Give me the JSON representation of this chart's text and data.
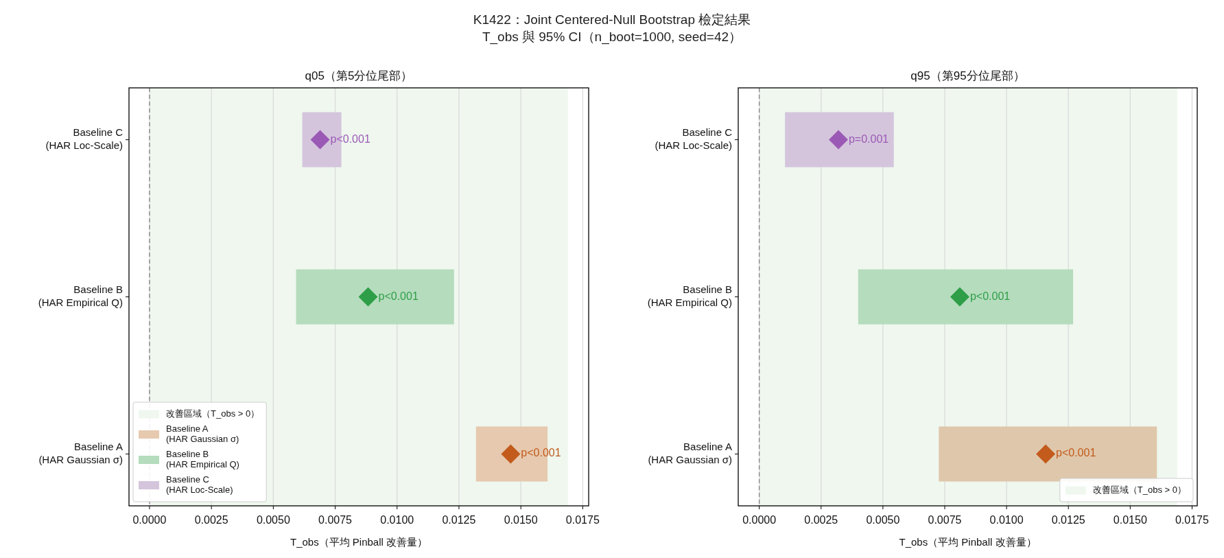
{
  "chart_data": [
    {
      "type": "bar",
      "orientation": "horizontal",
      "title": "q05（第5分位尾部）",
      "xlabel": "T_obs（平均 Pinball 改善量）",
      "annotations": [
        "K1422：Joint Centered-Null Bootstrap 檢定結果",
        "T_obs 與 95% CI（n_boot=1000, seed=42）",
        {
          "text": "p<0.001",
          "x": 0.00689,
          "y": "Baseline C\n(HAR Loc-Scale)"
        },
        {
          "text": "p<0.001",
          "x": 0.00883,
          "y": "Baseline B\n(HAR Empirical Q)"
        },
        {
          "text": "p<0.001",
          "x": 0.01459,
          "y": "Baseline A\n(HAR Gaussian σ)"
        }
      ],
      "categories": [
        "Baseline C\n(HAR Loc-Scale)",
        "Baseline B\n(HAR Empirical Q)",
        "Baseline A\n(HAR Gaussian σ)"
      ],
      "series": [
        {
          "name": "Baseline A\n(HAR Gaussian σ)",
          "color": "#e6c9ae",
          "values": [
            null,
            null,
            0.00289
          ],
          "base": [
            null,
            null,
            0.01319
          ]
        },
        {
          "name": "Baseline B\n(HAR Empirical Q)",
          "color": "#b5dcbd",
          "values": [
            null,
            0.00638,
            null
          ],
          "base": [
            null,
            0.00592,
            null
          ]
        },
        {
          "name": "Baseline C\n(HAR Loc-Scale)",
          "color": "#d4c5dc",
          "values": [
            0.00158,
            null,
            null
          ],
          "base": [
            0.00617,
            null,
            null
          ]
        },
        {
          "type": "scatter",
          "marker": "diamond",
          "colors": [
            "#9b59b6",
            "#2e9e48",
            "#c25b1c"
          ],
          "values": [
            0.00689,
            0.00883,
            0.01459
          ]
        }
      ],
      "xlim": [
        -0.00083,
        0.01774
      ],
      "xticks": [
        {
          "value": 0,
          "label": "0.0000"
        },
        {
          "value": 0.0025,
          "label": "0.0025"
        },
        {
          "value": 0.005,
          "label": "0.0050"
        },
        {
          "value": 0.0075,
          "label": "0.0075"
        },
        {
          "value": 0.01,
          "label": "0.0100"
        },
        {
          "value": 0.0125,
          "label": "0.0125"
        },
        {
          "value": 0.015,
          "label": "0.0150"
        },
        {
          "value": 0.0175,
          "label": "0.0175"
        }
      ],
      "grid": "x",
      "legend": "bottom left",
      "bands": [
        {
          "axis": "x",
          "from": 0,
          "to": 0.0169,
          "label": "改善區域（T_obs > 0）",
          "color": "#eff7ef"
        }
      ],
      "ref_lines": [
        {
          "axis": "x",
          "value": 0,
          "color": "#888888",
          "line_style": "dashed"
        }
      ]
    },
    {
      "type": "bar",
      "orientation": "horizontal",
      "title": "q95（第95分位尾部）",
      "xlabel": "T_obs（平均 Pinball 改善量）",
      "annotations": [
        {
          "text": "p=0.001",
          "x": 0.0032,
          "y": "Baseline C\n(HAR Loc-Scale)"
        },
        {
          "text": "p<0.001",
          "x": 0.00811,
          "y": "Baseline B\n(HAR Empirical Q)"
        },
        {
          "text": "p<0.001",
          "x": 0.01158,
          "y": "Baseline A\n(HAR Gaussian σ)"
        }
      ],
      "categories": [
        "Baseline C\n(HAR Loc-Scale)",
        "Baseline B\n(HAR Empirical Q)",
        "Baseline A\n(HAR Gaussian σ)"
      ],
      "series": [
        {
          "color": "#dfc7ab",
          "values": [
            null,
            null,
            0.00882
          ],
          "base": [
            null,
            null,
            0.00726
          ]
        },
        {
          "color": "#b5dcbd",
          "values": [
            null,
            0.00869,
            null
          ],
          "base": [
            null,
            0.004,
            null
          ]
        },
        {
          "color": "#d4c5dc",
          "values": [
            0.0044,
            null,
            null
          ],
          "base": [
            0.00104,
            null,
            null
          ]
        },
        {
          "type": "scatter",
          "marker": "diamond",
          "colors": [
            "#9b59b6",
            "#2e9e48",
            "#c25b1c"
          ],
          "values": [
            0.0032,
            0.00811,
            0.01158
          ]
        }
      ],
      "xlim": [
        -0.00085,
        0.01771
      ],
      "xticks": [
        {
          "value": 0,
          "label": "0.0000"
        },
        {
          "value": 0.0025,
          "label": "0.0025"
        },
        {
          "value": 0.005,
          "label": "0.0050"
        },
        {
          "value": 0.0075,
          "label": "0.0075"
        },
        {
          "value": 0.01,
          "label": "0.0100"
        },
        {
          "value": 0.0125,
          "label": "0.0125"
        },
        {
          "value": 0.015,
          "label": "0.0150"
        },
        {
          "value": 0.0175,
          "label": "0.0175"
        }
      ],
      "grid": "x",
      "legend": "bottom right",
      "bands": [
        {
          "axis": "x",
          "from": 0,
          "to": 0.0169,
          "label": "改善區域（T_obs > 0）",
          "color": "#eff7ef"
        }
      ],
      "ref_lines": [
        {
          "axis": "x",
          "value": 0,
          "color": "#888888",
          "line_style": "dashed"
        }
      ]
    }
  ]
}
